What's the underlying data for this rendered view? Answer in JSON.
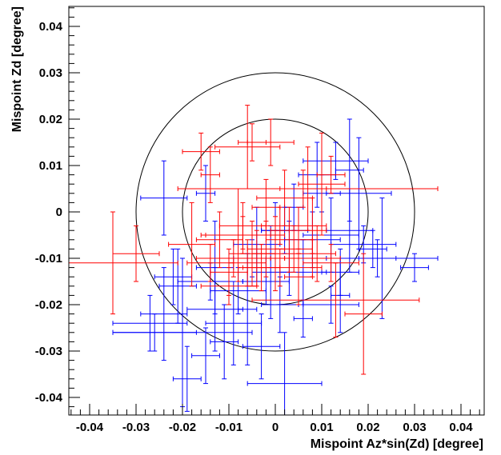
{
  "chart_data": {
    "type": "scatter",
    "xlabel": "Mispoint Az*sin(Zd) [degree]",
    "ylabel": "Mispoint Zd [degree]",
    "xlim": [
      -0.045,
      0.045
    ],
    "ylim": [
      -0.045,
      0.045
    ],
    "grid": false,
    "x_ticks": [
      {
        "value": -0.04,
        "label": "-0.04"
      },
      {
        "value": -0.03,
        "label": "-0.03"
      },
      {
        "value": -0.02,
        "label": "-0.02"
      },
      {
        "value": -0.01,
        "label": "-0.01"
      },
      {
        "value": 0,
        "label": "0"
      },
      {
        "value": 0.01,
        "label": "0.01"
      },
      {
        "value": 0.02,
        "label": "0.02"
      },
      {
        "value": 0.03,
        "label": "0.03"
      },
      {
        "value": 0.04,
        "label": "0.04"
      }
    ],
    "y_ticks": [
      {
        "value": -0.04,
        "label": "-0.04"
      },
      {
        "value": -0.03,
        "label": "-0.03"
      },
      {
        "value": -0.02,
        "label": "-0.02"
      },
      {
        "value": -0.01,
        "label": "-0.01"
      },
      {
        "value": 0,
        "label": "0"
      },
      {
        "value": 0.01,
        "label": "0.01"
      },
      {
        "value": 0.02,
        "label": "0.02"
      },
      {
        "value": 0.03,
        "label": "0.03"
      },
      {
        "value": 0.04,
        "label": "0.04"
      }
    ],
    "circles": [
      {
        "cx": 0,
        "cy": 0,
        "r": 0.02,
        "color": "#000000"
      },
      {
        "cx": 0,
        "cy": 0,
        "r": 0.03,
        "color": "#000000"
      }
    ],
    "series": [
      {
        "color": "#0000ff",
        "points": [
          {
            "x": -0.024,
            "y": 0.003,
            "ex": 0.005,
            "ey": 0.008
          },
          {
            "x": -0.015,
            "y": 0.004,
            "ex": 0.002,
            "ey": 0.006
          },
          {
            "x": -0.022,
            "y": -0.014,
            "ex": 0.004,
            "ey": 0.006
          },
          {
            "x": -0.021,
            "y": -0.016,
            "ex": 0.004,
            "ey": 0.008
          },
          {
            "x": -0.024,
            "y": -0.022,
            "ex": 0.005,
            "ey": 0.01
          },
          {
            "x": -0.02,
            "y": -0.026,
            "ex": 0.015,
            "ey": 0.016
          },
          {
            "x": -0.027,
            "y": -0.024,
            "ex": 0.008,
            "ey": 0.006
          },
          {
            "x": -0.013,
            "y": -0.021,
            "ex": 0.006,
            "ey": 0.009
          },
          {
            "x": -0.014,
            "y": -0.015,
            "ex": 0.007,
            "ey": 0.004
          },
          {
            "x": -0.009,
            "y": -0.024,
            "ex": 0.006,
            "ey": 0.009
          },
          {
            "x": -0.013,
            "y": -0.012,
            "ex": 0.004,
            "ey": 0.01
          },
          {
            "x": -0.008,
            "y": -0.017,
            "ex": 0.006,
            "ey": 0.005
          },
          {
            "x": -0.006,
            "y": -0.021,
            "ex": 0.002,
            "ey": 0.012
          },
          {
            "x": -0.005,
            "y": -0.01,
            "ex": 0.004,
            "ey": 0.004
          },
          {
            "x": -0.004,
            "y": -0.007,
            "ex": 0.005,
            "ey": 0.008
          },
          {
            "x": -0.002,
            "y": -0.015,
            "ex": 0.005,
            "ey": 0.005
          },
          {
            "x": -0.001,
            "y": -0.013,
            "ex": 0.004,
            "ey": 0.01
          },
          {
            "x": 0.001,
            "y": -0.02,
            "ex": 0.004,
            "ey": 0.006
          },
          {
            "x": 0.0,
            "y": -0.004,
            "ex": 0.003,
            "ey": 0.006
          },
          {
            "x": 0.002,
            "y": -0.004,
            "ex": 0.005,
            "ey": 0.005
          },
          {
            "x": 0.003,
            "y": -0.01,
            "ex": 0.005,
            "ey": 0.008
          },
          {
            "x": 0.004,
            "y": 0.001,
            "ex": 0.002,
            "ey": 0.005
          },
          {
            "x": 0.006,
            "y": -0.013,
            "ex": 0.005,
            "ey": 0.007
          },
          {
            "x": 0.008,
            "y": -0.006,
            "ex": 0.006,
            "ey": 0.006
          },
          {
            "x": 0.009,
            "y": 0.008,
            "ex": 0.004,
            "ey": 0.007
          },
          {
            "x": 0.01,
            "y": 0.004,
            "ex": 0.004,
            "ey": 0.004
          },
          {
            "x": 0.012,
            "y": -0.005,
            "ex": 0.006,
            "ey": 0.008
          },
          {
            "x": 0.014,
            "y": -0.013,
            "ex": 0.004,
            "ey": 0.005
          },
          {
            "x": 0.013,
            "y": 0.011,
            "ex": 0.007,
            "ey": 0.004
          },
          {
            "x": 0.016,
            "y": 0.009,
            "ex": 0.003,
            "ey": 0.011
          },
          {
            "x": 0.018,
            "y": 0.004,
            "ex": 0.007,
            "ey": 0.012
          },
          {
            "x": 0.019,
            "y": -0.007,
            "ex": 0.007,
            "ey": 0.004
          },
          {
            "x": 0.021,
            "y": -0.008,
            "ex": 0.003,
            "ey": 0.004
          },
          {
            "x": 0.022,
            "y": -0.01,
            "ex": 0.004,
            "ey": 0.004
          },
          {
            "x": 0.023,
            "y": -0.01,
            "ex": 0.012,
            "ey": 0.013
          },
          {
            "x": 0.03,
            "y": -0.012,
            "ex": 0.003,
            "ey": 0.003
          },
          {
            "x": 0.012,
            "y": -0.02,
            "ex": 0.006,
            "ey": 0.004
          },
          {
            "x": 0.014,
            "y": -0.018,
            "ex": 0.002,
            "ey": 0.008
          },
          {
            "x": -0.026,
            "y": -0.026,
            "ex": 0.009,
            "ey": 0.004
          },
          {
            "x": -0.019,
            "y": -0.036,
            "ex": 0.003,
            "ey": 0.007
          },
          {
            "x": -0.015,
            "y": -0.031,
            "ex": 0.003,
            "ey": 0.006
          },
          {
            "x": -0.011,
            "y": -0.028,
            "ex": 0.003,
            "ey": 0.008
          },
          {
            "x": -0.003,
            "y": -0.029,
            "ex": 0.004,
            "ey": 0.007
          },
          {
            "x": 0.002,
            "y": -0.037,
            "ex": 0.008,
            "ey": 0.011
          },
          {
            "x": 0.006,
            "y": -0.023,
            "ex": 0.002,
            "ey": 0.004
          },
          {
            "x": 0.016,
            "y": -0.004,
            "ex": 0.005,
            "ey": 0.009
          }
        ]
      },
      {
        "color": "#ff0000",
        "points": [
          {
            "x": -0.035,
            "y": -0.011,
            "ex": 0.014,
            "ey": 0.011
          },
          {
            "x": -0.03,
            "y": -0.009,
            "ex": 0.005,
            "ey": 0.006
          },
          {
            "x": -0.016,
            "y": 0.013,
            "ex": 0.004,
            "ey": 0.004
          },
          {
            "x": -0.014,
            "y": 0.008,
            "ex": 0.002,
            "ey": 0.006
          },
          {
            "x": -0.012,
            "y": -0.006,
            "ex": 0.005,
            "ey": 0.006
          },
          {
            "x": -0.01,
            "y": -0.013,
            "ex": 0.004,
            "ey": 0.005
          },
          {
            "x": -0.008,
            "y": -0.005,
            "ex": 0.007,
            "ey": 0.01
          },
          {
            "x": -0.006,
            "y": 0.014,
            "ex": 0.007,
            "ey": 0.009
          },
          {
            "x": -0.005,
            "y": -0.009,
            "ex": 0.005,
            "ey": 0.007
          },
          {
            "x": -0.004,
            "y": -0.01,
            "ex": 0.006,
            "ey": 0.006
          },
          {
            "x": -0.003,
            "y": -0.012,
            "ex": 0.004,
            "ey": 0.005
          },
          {
            "x": -0.002,
            "y": -0.008,
            "ex": 0.004,
            "ey": 0.006
          },
          {
            "x": -0.001,
            "y": 0.015,
            "ex": 0.005,
            "ey": 0.005
          },
          {
            "x": 0.0,
            "y": -0.009,
            "ex": 0.005,
            "ey": 0.008
          },
          {
            "x": 0.001,
            "y": -0.003,
            "ex": 0.004,
            "ey": 0.004
          },
          {
            "x": 0.002,
            "y": 0.003,
            "ex": 0.006,
            "ey": 0.006
          },
          {
            "x": 0.003,
            "y": -0.006,
            "ex": 0.005,
            "ey": 0.007
          },
          {
            "x": 0.004,
            "y": -0.008,
            "ex": 0.004,
            "ey": 0.005
          },
          {
            "x": 0.005,
            "y": -0.004,
            "ex": 0.006,
            "ey": 0.005
          },
          {
            "x": 0.006,
            "y": 0.005,
            "ex": 0.005,
            "ey": 0.004
          },
          {
            "x": 0.007,
            "y": 0.005,
            "ex": 0.028,
            "ey": 0.009
          },
          {
            "x": 0.008,
            "y": -0.003,
            "ex": 0.003,
            "ey": 0.006
          },
          {
            "x": 0.009,
            "y": -0.009,
            "ex": 0.004,
            "ey": 0.006
          },
          {
            "x": 0.01,
            "y": 0.006,
            "ex": 0.005,
            "ey": 0.011
          },
          {
            "x": 0.012,
            "y": 0.008,
            "ex": 0.003,
            "ey": 0.004
          },
          {
            "x": 0.013,
            "y": -0.019,
            "ex": 0.018,
            "ey": 0.008
          },
          {
            "x": -0.018,
            "y": -0.007,
            "ex": 0.005,
            "ey": 0.009
          },
          {
            "x": -0.014,
            "y": -0.011,
            "ex": 0.005,
            "ey": 0.004
          },
          {
            "x": -0.007,
            "y": -0.005,
            "ex": 0.009,
            "ey": 0.004
          },
          {
            "x": -0.006,
            "y": -0.011,
            "ex": 0.004,
            "ey": 0.005
          },
          {
            "x": -0.002,
            "y": 0.001,
            "ex": 0.003,
            "ey": 0.006
          },
          {
            "x": 0.001,
            "y": -0.012,
            "ex": 0.009,
            "ey": 0.004
          },
          {
            "x": 0.005,
            "y": -0.014,
            "ex": 0.003,
            "ey": 0.006
          },
          {
            "x": 0.012,
            "y": -0.011,
            "ex": 0.006,
            "ey": 0.004
          },
          {
            "x": 0.019,
            "y": -0.022,
            "ex": 0.004,
            "ey": 0.013
          },
          {
            "x": -0.005,
            "y": 0.015,
            "ex": 0.003,
            "ey": 0.004
          },
          {
            "x": -0.009,
            "y": -0.01,
            "ex": 0.008,
            "ey": 0.004
          },
          {
            "x": -0.01,
            "y": -0.016,
            "ex": 0.006,
            "ey": 0.004
          },
          {
            "x": -0.007,
            "y": -0.003,
            "ex": 0.005,
            "ey": 0.005
          },
          {
            "x": 0.008,
            "y": -0.01,
            "ex": 0.006,
            "ey": 0.004
          }
        ]
      }
    ]
  }
}
